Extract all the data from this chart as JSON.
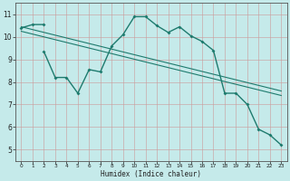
{
  "xlabel": "Humidex (Indice chaleur)",
  "background_color": "#c5eaea",
  "grid_color": "#b0c8c8",
  "line_color": "#1e7b6e",
  "xlim": [
    -0.5,
    23.5
  ],
  "ylim": [
    4.5,
    11.5
  ],
  "xticks": [
    0,
    1,
    2,
    3,
    4,
    5,
    6,
    7,
    8,
    9,
    10,
    11,
    12,
    13,
    14,
    15,
    16,
    17,
    18,
    19,
    20,
    21,
    22,
    23
  ],
  "yticks": [
    5,
    6,
    7,
    8,
    9,
    10,
    11
  ],
  "series1_x": [
    0,
    1,
    2
  ],
  "series1_y": [
    10.4,
    10.55,
    10.55
  ],
  "series2_x": [
    2,
    3,
    4,
    5,
    6,
    7,
    8,
    9,
    10,
    11,
    12,
    13,
    14,
    15,
    16,
    17,
    18,
    19,
    20,
    21,
    22,
    23
  ],
  "series2_y": [
    9.35,
    8.2,
    8.2,
    7.5,
    8.55,
    8.45,
    9.6,
    10.1,
    10.9,
    10.9,
    10.5,
    10.2,
    10.45,
    10.05,
    9.8,
    9.4,
    7.5,
    7.5,
    7.0,
    5.9,
    5.65,
    5.2
  ],
  "line1_x": [
    0,
    23
  ],
  "line1_y": [
    10.45,
    7.6
  ],
  "line2_x": [
    0,
    23
  ],
  "line2_y": [
    10.25,
    7.4
  ]
}
